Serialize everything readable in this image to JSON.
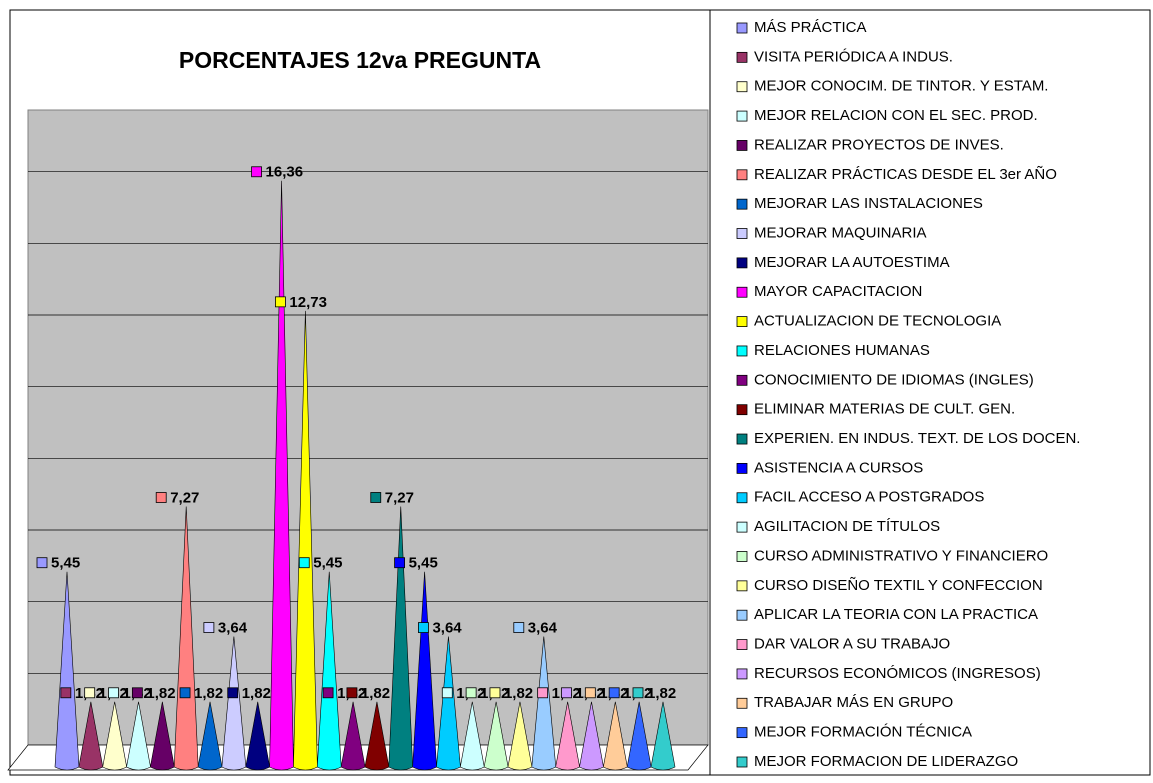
{
  "chart_data": {
    "type": "cone",
    "title": "PORCENTAJES 12va PREGUNTA",
    "categories": [
      "MÁS PRÁCTICA",
      "VISITA PERIÓDICA A INDUS.",
      "MEJOR CONOCIM. DE TINTOR. Y ESTAM.",
      "MEJOR RELACION CON EL SEC. PROD.",
      "REALIZAR PROYECTOS DE INVES.",
      "REALIZAR PRÁCTICAS DESDE EL 3er AÑO",
      "MEJORAR LAS INSTALACIONES",
      "MEJORAR MAQUINARIA",
      "MEJORAR LA AUTOESTIMA",
      "MAYOR CAPACITACION",
      "ACTUALIZACION DE TECNOLOGIA",
      "RELACIONES HUMANAS",
      "CONOCIMIENTO DE IDIOMAS (INGLES)",
      "ELIMINAR MATERIAS DE CULT. GEN.",
      "EXPERIEN. EN INDUS. TEXT. DE LOS DOCEN.",
      "ASISTENCIA A CURSOS",
      "FACIL ACCESO A POSTGRADOS",
      "AGILITACION DE TÍTULOS",
      "CURSO ADMINISTRATIVO Y FINANCIERO",
      "CURSO DISEÑO TEXTIL Y CONFECCION",
      "APLICAR LA TEORIA CON LA PRACTICA",
      "DAR VALOR A SU TRABAJO",
      "RECURSOS ECONÓMICOS (INGRESOS)",
      "TRABAJAR MÁS EN GRUPO",
      "MEJOR FORMACIÓN TÉCNICA",
      "MEJOR FORMACION DE LIDERAZGO"
    ],
    "values": [
      5.45,
      1.82,
      1.82,
      1.82,
      1.82,
      7.27,
      1.82,
      3.64,
      1.82,
      16.36,
      12.73,
      5.45,
      1.82,
      1.82,
      7.27,
      5.45,
      3.64,
      1.82,
      1.82,
      1.82,
      3.64,
      1.82,
      1.82,
      1.82,
      1.82,
      1.82
    ],
    "value_labels": [
      "5,45",
      "1,82",
      "1,82",
      "1,82",
      "1,82",
      "7,27",
      "1,82",
      "3,64",
      "1,82",
      "16,36",
      "12,73",
      "5,45",
      "1,82",
      "1,82",
      "7,27",
      "5,45",
      "3,64",
      "1,82",
      "1,82",
      "1,82",
      "3,64",
      "1,82",
      "1,82",
      "1,82",
      "1,82",
      "1,82"
    ],
    "colors": [
      "#9999ff",
      "#993366",
      "#ffffcc",
      "#ccffff",
      "#660066",
      "#ff8080",
      "#0066cc",
      "#ccccff",
      "#000080",
      "#ff00ff",
      "#ffff00",
      "#00ffff",
      "#800080",
      "#800000",
      "#008080",
      "#0000ff",
      "#00ccff",
      "#ccffff",
      "#ccffcc",
      "#ffff99",
      "#99ccff",
      "#ff99cc",
      "#cc99ff",
      "#ffcc99",
      "#3366ff",
      "#33cccc"
    ],
    "ylim": [
      0,
      18
    ],
    "yticks": [
      0,
      2,
      4,
      6,
      8,
      10,
      12,
      14,
      16,
      18
    ],
    "grid": true,
    "legend": "right"
  }
}
